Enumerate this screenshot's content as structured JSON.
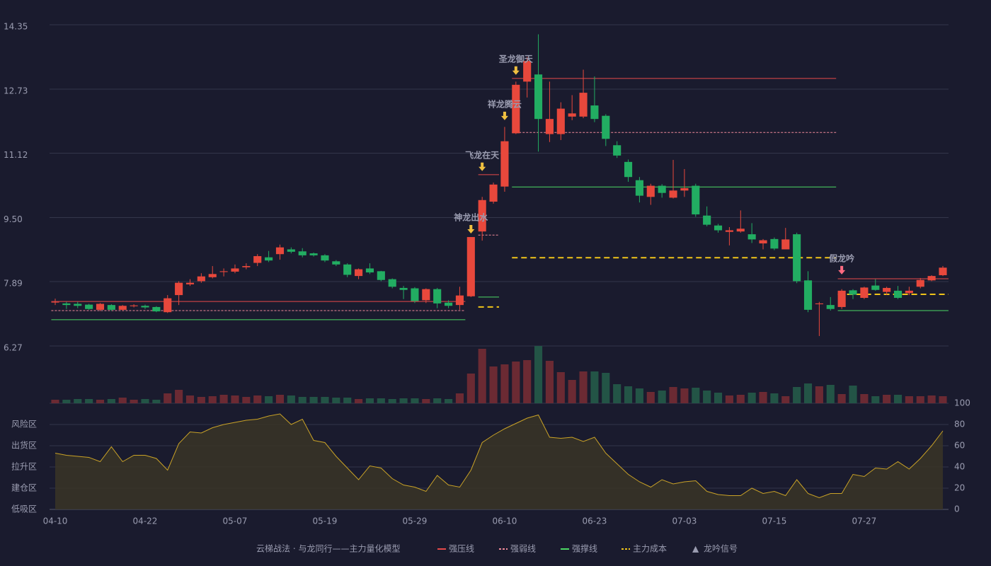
{
  "chart_data": {
    "type": "candlestick",
    "categories": [
      "04-10",
      null,
      null,
      null,
      null,
      null,
      null,
      null,
      "04-22",
      null,
      null,
      null,
      null,
      null,
      null,
      null,
      "05-07",
      null,
      null,
      null,
      null,
      null,
      null,
      null,
      "05-19",
      null,
      null,
      null,
      null,
      null,
      null,
      null,
      "05-29",
      null,
      null,
      null,
      null,
      null,
      null,
      null,
      "06-10",
      null,
      null,
      null,
      null,
      null,
      null,
      null,
      "06-23",
      null,
      null,
      null,
      null,
      null,
      null,
      null,
      "07-03",
      null,
      null,
      null,
      null,
      null,
      null,
      null,
      "07-15",
      null,
      null,
      null,
      null,
      null,
      null,
      null,
      "07-27",
      null,
      null,
      null,
      null,
      null,
      null,
      null
    ],
    "ohlc": {
      "open": [
        7.37,
        7.34,
        7.33,
        7.31,
        7.18,
        7.3,
        7.18,
        7.27,
        7.28,
        7.25,
        7.12,
        7.55,
        7.82,
        7.9,
        8.0,
        8.13,
        8.14,
        8.25,
        8.36,
        8.5,
        8.58,
        8.7,
        8.65,
        8.6,
        8.55,
        8.4,
        8.32,
        8.03,
        8.22,
        8.15,
        7.95,
        7.73,
        7.72,
        7.42,
        7.7,
        7.36,
        7.3,
        7.52,
        9.15,
        9.9,
        10.28,
        11.62,
        12.92,
        13.1,
        11.6,
        11.6,
        12.04,
        12.04,
        12.32,
        12.06,
        11.32,
        10.9,
        10.44,
        10.02,
        10.3,
        10.0,
        10.18,
        10.3,
        9.55,
        9.3,
        9.14,
        9.15,
        9.08,
        8.85,
        8.96,
        8.7,
        9.08,
        7.92,
        7.32,
        7.3,
        7.25,
        7.67,
        7.48,
        7.79,
        7.63,
        7.66,
        7.6,
        7.76,
        7.92,
        8.05
      ],
      "high": [
        7.46,
        7.38,
        7.38,
        7.33,
        7.35,
        7.32,
        7.3,
        7.32,
        7.31,
        7.27,
        7.55,
        7.9,
        7.95,
        8.1,
        8.28,
        8.22,
        8.32,
        8.35,
        8.58,
        8.66,
        8.82,
        8.75,
        8.73,
        8.62,
        8.58,
        8.43,
        8.35,
        8.22,
        8.35,
        8.16,
        7.97,
        7.78,
        7.75,
        7.72,
        7.73,
        7.42,
        7.76,
        9.01,
        10.02,
        10.38,
        11.78,
        12.92,
        13.54,
        14.11,
        12.92,
        12.4,
        12.58,
        13.22,
        13.05,
        12.1,
        11.42,
        10.96,
        10.52,
        10.35,
        10.34,
        10.95,
        10.72,
        10.35,
        9.78,
        9.34,
        9.26,
        9.68,
        9.36,
        8.96,
        9.0,
        9.24,
        9.12,
        8.15,
        7.38,
        7.5,
        7.7,
        7.7,
        7.76,
        7.95,
        7.76,
        7.78,
        7.76,
        7.98,
        8.05,
        8.28
      ],
      "low": [
        7.3,
        7.2,
        7.22,
        7.18,
        7.15,
        7.15,
        7.16,
        7.24,
        7.2,
        7.12,
        7.1,
        7.3,
        7.78,
        7.86,
        7.97,
        8.02,
        8.1,
        8.2,
        8.28,
        8.38,
        8.44,
        8.6,
        8.5,
        8.52,
        8.38,
        8.28,
        8.0,
        7.95,
        8.08,
        7.9,
        7.72,
        7.45,
        7.35,
        7.35,
        7.22,
        7.22,
        7.18,
        7.5,
        8.92,
        9.85,
        10.15,
        11.6,
        12.52,
        11.16,
        11.4,
        11.45,
        11.95,
        12.0,
        11.9,
        11.3,
        11.0,
        10.4,
        9.88,
        9.82,
        10.0,
        9.98,
        10.02,
        9.52,
        9.28,
        9.12,
        8.8,
        9.12,
        8.86,
        8.7,
        8.68,
        8.7,
        7.85,
        7.12,
        6.52,
        7.16,
        7.2,
        7.45,
        7.45,
        7.66,
        7.55,
        7.45,
        7.55,
        7.72,
        7.9,
        8.03
      ],
      "close": [
        7.38,
        7.3,
        7.28,
        7.2,
        7.33,
        7.18,
        7.28,
        7.29,
        7.24,
        7.14,
        7.47,
        7.86,
        7.86,
        8.02,
        8.08,
        8.15,
        8.22,
        8.28,
        8.53,
        8.42,
        8.75,
        8.64,
        8.55,
        8.55,
        8.42,
        8.32,
        8.06,
        8.2,
        8.12,
        7.93,
        7.76,
        7.68,
        7.4,
        7.7,
        7.34,
        7.28,
        7.54,
        9.01,
        9.94,
        10.33,
        11.42,
        12.84,
        13.44,
        11.98,
        11.98,
        12.24,
        12.12,
        12.64,
        11.98,
        11.48,
        11.06,
        10.52,
        10.05,
        10.3,
        10.12,
        10.18,
        10.24,
        9.58,
        9.32,
        9.18,
        9.18,
        9.22,
        8.95,
        8.93,
        8.72,
        8.95,
        7.9,
        7.18,
        7.34,
        7.2,
        7.66,
        7.56,
        7.74,
        7.68,
        7.73,
        7.48,
        7.66,
        7.93,
        8.03,
        8.24
      ]
    },
    "up_color": "#e8483c",
    "down_color": "#22ad62",
    "ylim": [
      6.27,
      14.35
    ],
    "yticks": [
      {
        "value": 6.27,
        "label": "6.27"
      },
      {
        "value": 7.89,
        "label": "7.89"
      },
      {
        "value": 9.5,
        "label": "9.50"
      },
      {
        "value": 11.12,
        "label": "11.12"
      },
      {
        "value": 12.73,
        "label": "12.73"
      },
      {
        "value": 14.35,
        "label": "14.35"
      }
    ],
    "grid": true,
    "volume": [
      5,
      5,
      6,
      6,
      5,
      6,
      8,
      5,
      6,
      5,
      14,
      19,
      11,
      9,
      10,
      12,
      11,
      9,
      11,
      10,
      12,
      11,
      9,
      9,
      9,
      8,
      8,
      6,
      7,
      7,
      6,
      7,
      7,
      6,
      7,
      6,
      14,
      42,
      77,
      52,
      55,
      59,
      61,
      81,
      60,
      44,
      33,
      45,
      45,
      43,
      27,
      24,
      21,
      16,
      18,
      23,
      21,
      22,
      18,
      15,
      11,
      12,
      15,
      16,
      14,
      10,
      23,
      28,
      24,
      26,
      13,
      25,
      13,
      10,
      12,
      12,
      10,
      10,
      11,
      10
    ],
    "volume_colors": {
      "up": "#6b2a33",
      "down": "#235446"
    },
    "lines": [
      {
        "name": "强压线",
        "color": "#e84a4a",
        "style": "solid",
        "segments": [
          {
            "start": 0,
            "end": 36,
            "value": 7.39
          },
          {
            "start": 38,
            "end": 39,
            "value": 10.58
          },
          {
            "start": 41,
            "end": 69,
            "value": 13.0
          },
          {
            "start": 70,
            "end": 79,
            "value": 7.96
          }
        ]
      },
      {
        "name": "强弱线",
        "color": "#f08a9a",
        "style": "dashed",
        "segments": [
          {
            "start": 0,
            "end": 36,
            "value": 7.16
          },
          {
            "start": 38,
            "end": 39,
            "value": 9.06
          },
          {
            "start": 41,
            "end": 69,
            "value": 11.64
          }
        ]
      },
      {
        "name": "强撑线",
        "color": "#4cd964",
        "style": "solid",
        "segments": [
          {
            "start": 0,
            "end": 36,
            "value": 6.93
          },
          {
            "start": 38,
            "end": 39,
            "value": 7.5
          },
          {
            "start": 41,
            "end": 69,
            "value": 10.27
          },
          {
            "start": 70,
            "end": 79,
            "value": 7.16
          }
        ]
      },
      {
        "name": "主力成本",
        "color": "#f0c419",
        "style": "dashed",
        "segments": [
          {
            "start": 38,
            "end": 39,
            "value": 7.25
          },
          {
            "start": 41,
            "end": 69,
            "value": 8.49
          },
          {
            "start": 70,
            "end": 79,
            "value": 7.57
          }
        ]
      }
    ],
    "signals": {
      "name": "龙吟信号",
      "symbol": "▲",
      "color": "#f0c040",
      "items": [
        {
          "text": "神龙出水",
          "index": 37,
          "value": 9.1,
          "color": "#f0c040"
        },
        {
          "text": "飞龙在天",
          "index": 38,
          "value": 10.67,
          "color": "#f0c040"
        },
        {
          "text": "祥龙腾云",
          "index": 40,
          "value": 11.95,
          "color": "#f0c040"
        },
        {
          "text": "圣龙御天",
          "index": 41,
          "value": 13.09,
          "color": "#f0c040"
        },
        {
          "text": "假龙吟",
          "index": 70,
          "value": 8.07,
          "color": "#ff6b81"
        }
      ]
    },
    "indicator": {
      "name": "云梯战法 · 与龙同行——主力量化模型",
      "color": "#c9a227",
      "values": [
        53,
        51,
        50,
        49,
        45,
        59,
        45,
        51,
        51,
        48,
        37,
        62,
        73,
        72,
        77,
        80,
        82,
        84,
        85,
        88,
        90,
        80,
        85,
        65,
        63,
        50,
        39,
        28,
        41,
        39,
        29,
        23,
        21,
        17,
        32,
        23,
        21,
        37,
        63,
        70,
        76,
        81,
        86,
        89,
        68,
        67,
        68,
        64,
        68,
        53,
        43,
        33,
        26,
        21,
        28,
        24,
        26,
        27,
        17,
        14,
        13,
        13,
        20,
        15,
        17,
        13,
        28,
        15,
        11,
        15,
        15,
        33,
        31,
        39,
        38,
        45,
        38,
        48,
        60,
        74
      ],
      "ylim": [
        0,
        100
      ],
      "yticks": [
        0,
        20,
        40,
        60,
        80,
        100
      ],
      "ytick_colors": [
        "#ff4d4d",
        "#9a9cb0",
        "#9a9cb0",
        "#9a9cb0",
        "#9a9cb0",
        "#4cff4c"
      ],
      "zones": [
        {
          "label": "低吸区",
          "value": 0,
          "color": "#ff4d4d"
        },
        {
          "label": "建仓区",
          "value": 20,
          "color": "#ff6a4d"
        },
        {
          "label": "拉升区",
          "value": 40,
          "color": "#4a90ff"
        },
        {
          "label": "出货区",
          "value": 60,
          "color": "#e040e0"
        },
        {
          "label": "风险区",
          "value": 80,
          "color": "#f0a030"
        }
      ]
    }
  }
}
